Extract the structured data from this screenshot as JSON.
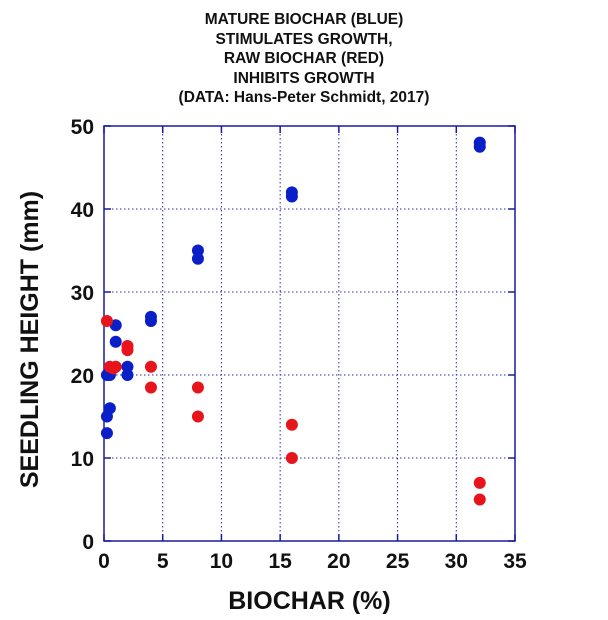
{
  "chart_data": {
    "type": "scatter",
    "title_lines": [
      "MATURE BIOCHAR (BLUE)",
      "STIMULATES GROWTH,",
      "RAW BIOCHAR (RED)",
      "INHIBITS GROWTH",
      "(DATA: Hans-Peter Schmidt, 2017)"
    ],
    "xlabel": "BIOCHAR (%)",
    "ylabel": "SEEDLING HEIGHT (mm)",
    "xlim": [
      0,
      35
    ],
    "ylim": [
      0,
      50
    ],
    "xticks": [
      0,
      5,
      10,
      15,
      20,
      25,
      30,
      35
    ],
    "yticks": [
      0,
      10,
      20,
      30,
      40,
      50
    ],
    "grid": true,
    "series": [
      {
        "color": "#0a1fc8",
        "points": [
          [
            0.25,
            13
          ],
          [
            0.25,
            15
          ],
          [
            0.5,
            16
          ],
          [
            0.5,
            20
          ],
          [
            0.25,
            20
          ],
          [
            1,
            24
          ],
          [
            1,
            26
          ],
          [
            2,
            20
          ],
          [
            2,
            21
          ],
          [
            4,
            26.5
          ],
          [
            4,
            27
          ],
          [
            8,
            34
          ],
          [
            8,
            35
          ],
          [
            16,
            41.5
          ],
          [
            16,
            42
          ],
          [
            32,
            47.5
          ],
          [
            32,
            48
          ]
        ]
      },
      {
        "color": "#e8141c",
        "points": [
          [
            0.25,
            26.5
          ],
          [
            0.5,
            21
          ],
          [
            1,
            21
          ],
          [
            0.8,
            20.8
          ],
          [
            2,
            23
          ],
          [
            2,
            23.5
          ],
          [
            4,
            21
          ],
          [
            4,
            18.5
          ],
          [
            8,
            18.5
          ],
          [
            8,
            15
          ],
          [
            16,
            14
          ],
          [
            16,
            10
          ],
          [
            32,
            7
          ],
          [
            32,
            5
          ]
        ]
      }
    ]
  }
}
